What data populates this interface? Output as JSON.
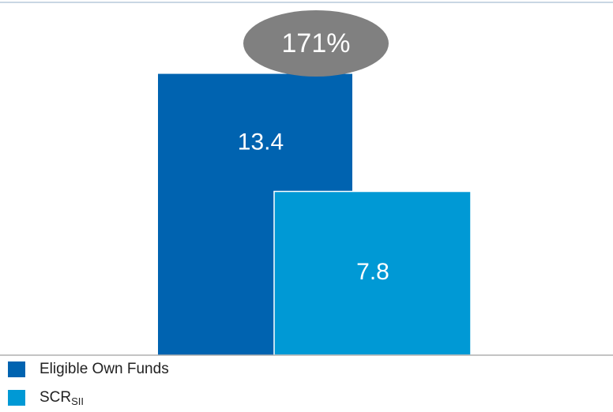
{
  "chart_data": {
    "type": "bar",
    "annotation": "171%",
    "series": [
      {
        "name": "Eligible Own Funds",
        "color": "#0063b0",
        "values": [
          13.4
        ]
      },
      {
        "name": "SCR",
        "subscript": "SII",
        "color": "#0099d5",
        "values": [
          7.8
        ]
      }
    ],
    "ylim": [
      0,
      16
    ]
  }
}
